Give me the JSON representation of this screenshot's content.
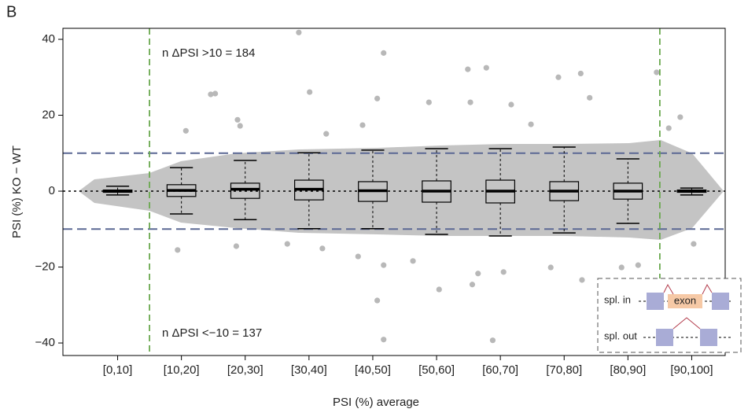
{
  "chart_data": {
    "type": "box",
    "panel_label": "B",
    "x_label": "PSI (%) average",
    "y_label": "PSI (%) KO − WT",
    "categories": [
      "[0,10]",
      "[10,20]",
      "[20,30]",
      "[30,40]",
      "[40,50]",
      "[50,60]",
      "[60,70]",
      "[70,80]",
      "[80,90]",
      "[90,100]"
    ],
    "xlim": [
      0,
      100
    ],
    "ylim": [
      -43.3,
      42.9
    ],
    "yticks": [
      {
        "value": -40,
        "label": "−40"
      },
      {
        "value": -20,
        "label": "−20"
      },
      0,
      20,
      40
    ],
    "box_color": "#000000",
    "point_color": "#b8b8b8",
    "boxes": [
      {
        "whisker_low": -1.0,
        "q1": -0.3,
        "median": 0,
        "q3": 0.3,
        "whisker_high": 1.3
      },
      {
        "whisker_low": -6.0,
        "q1": -1.4,
        "median": 0.2,
        "q3": 1.7,
        "whisker_high": 6.2
      },
      {
        "whisker_low": -7.5,
        "q1": -1.9,
        "median": 0.5,
        "q3": 2.1,
        "whisker_high": 8.1
      },
      {
        "whisker_low": -9.9,
        "q1": -2.3,
        "median": 0.5,
        "q3": 2.9,
        "whisker_high": 10.1
      },
      {
        "whisker_low": -9.9,
        "q1": -2.7,
        "median": 0.1,
        "q3": 2.5,
        "whisker_high": 10.8
      },
      {
        "whisker_low": -11.4,
        "q1": -2.9,
        "median": 0,
        "q3": 2.7,
        "whisker_high": 11.2
      },
      {
        "whisker_low": -11.8,
        "q1": -3.1,
        "median": 0,
        "q3": 2.9,
        "whisker_high": 11.2
      },
      {
        "whisker_low": -11.0,
        "q1": -2.5,
        "median": 0,
        "q3": 2.5,
        "whisker_high": 11.6
      },
      {
        "whisker_low": -8.5,
        "q1": -2.1,
        "median": 0,
        "q3": 2.1,
        "whisker_high": 8.5
      },
      {
        "whisker_low": -1.0,
        "q1": -0.3,
        "median": 0,
        "q3": 0.3,
        "whisker_high": 0.8
      }
    ],
    "points": {
      "x": [
        33.4,
        46.7,
        19.6,
        20.3,
        59.9,
        62.8,
        74.1,
        77.6,
        89.5,
        35.1,
        45.7,
        53.8,
        66.7,
        23.8,
        24.2,
        37.7,
        60.3,
        79.0,
        93.2,
        91.4,
        15.7,
        43.4,
        69.8,
        31.6,
        23.6,
        42.7,
        46.7,
        45.7,
        46.7,
        63.8,
        55.4,
        60.6,
        61.5,
        65.5,
        77.8,
        84.0,
        86.6,
        72.9,
        51.3,
        14.4,
        37.1,
        95.3
      ],
      "y": [
        41.8,
        36.4,
        25.5,
        25.7,
        32.1,
        32.5,
        30.0,
        31.0,
        31.3,
        26.1,
        24.4,
        23.4,
        22.8,
        18.8,
        17.2,
        15.1,
        23.4,
        24.6,
        19.5,
        16.6,
        15.9,
        17.4,
        17.6,
        -13.9,
        -14.5,
        -17.2,
        -19.5,
        -28.8,
        -39.1,
        -39.3,
        -25.9,
        -24.6,
        -21.7,
        -21.3,
        -23.4,
        -20.1,
        -19.5,
        -20.1,
        -18.4,
        -15.5,
        -15.1,
        -13.9
      ]
    },
    "hlines": [
      {
        "value": 10,
        "color": "#5b6894"
      },
      {
        "value": -10,
        "color": "#5b6894"
      },
      {
        "value": 0,
        "color": "#000000"
      }
    ],
    "vlines": [
      {
        "value": 10,
        "color": "#6aa84f"
      },
      {
        "value": 90,
        "color": "#6aa84f"
      }
    ],
    "annotations": [
      "n ΔPSI >10 = 184",
      "n ΔPSI <−10 = 137"
    ],
    "inset": {
      "in_label": "spl. in",
      "exon_label": "exon",
      "out_label": "spl. out"
    }
  }
}
